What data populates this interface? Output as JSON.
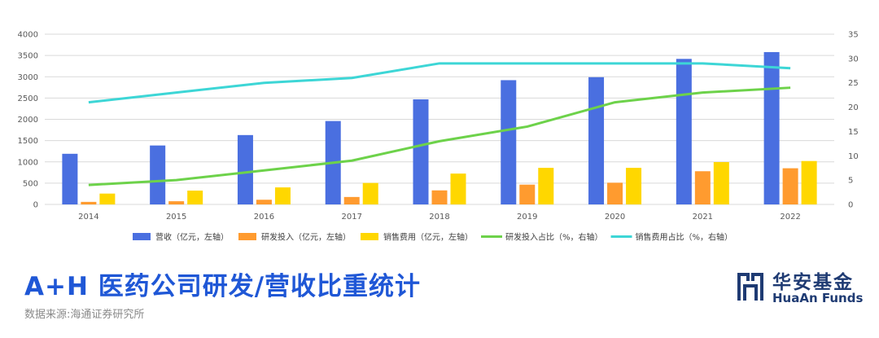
{
  "chart_data": {
    "type": "bar+line",
    "categories": [
      "2014",
      "2015",
      "2016",
      "2017",
      "2018",
      "2019",
      "2020",
      "2021",
      "2022"
    ],
    "y_left": {
      "lim": [
        0,
        4000
      ],
      "ticks": [
        "0",
        "500",
        "1000",
        "1500",
        "2000",
        "2500",
        "3000",
        "3500",
        "4000"
      ]
    },
    "y_right": {
      "lim": [
        0,
        35
      ],
      "ticks": [
        "0",
        "5",
        "10",
        "15",
        "20",
        "25",
        "30",
        "35"
      ]
    },
    "bar_series": [
      {
        "name": "营收（亿元，左轴）",
        "color": "#4a6fe0",
        "values": [
          1190,
          1385,
          1630,
          1960,
          2470,
          2920,
          2990,
          3420,
          3580
        ]
      },
      {
        "name": "研发投入（亿元，左轴）",
        "color": "#ff9b2f",
        "values": [
          60,
          75,
          110,
          175,
          330,
          465,
          510,
          780,
          850
        ]
      },
      {
        "name": "销售费用（亿元，左轴）",
        "color": "#ffd700",
        "values": [
          255,
          325,
          400,
          505,
          725,
          860,
          860,
          995,
          1020
        ]
      }
    ],
    "line_series": [
      {
        "name": "研发投入占比（%，右轴）",
        "color": "#6dd24a",
        "values": [
          4.0,
          5.0,
          7.0,
          9.0,
          13.0,
          16.0,
          21.0,
          23.0,
          24.0
        ]
      },
      {
        "name": "销售费用占比（%，右轴）",
        "color": "#3dd6d6",
        "values": [
          21.0,
          23.0,
          25.0,
          26.0,
          29.0,
          29.0,
          29.0,
          29.0,
          28.0
        ]
      }
    ],
    "grid": true,
    "legend_position": "bottom"
  },
  "title": "A+H 医药公司研发/营收比重统计",
  "source": "数据来源:海通证券研究所",
  "logo": {
    "cn": "华安基金",
    "en": "HuaAn Funds",
    "color": "#1f3b73"
  },
  "colors": {
    "title": "#1f57d6",
    "grid": "#d9d9d9"
  }
}
